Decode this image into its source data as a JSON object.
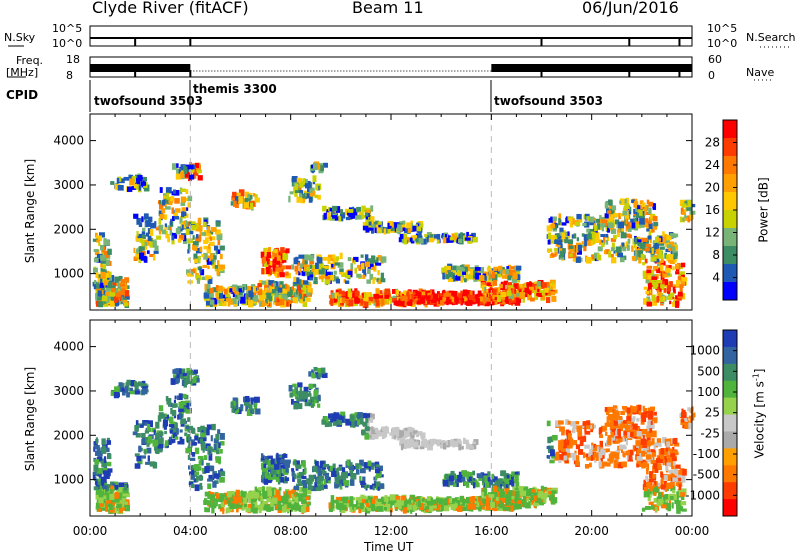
{
  "header": {
    "site": "Clyde River (fitACF)",
    "beam": "Beam 11",
    "date": "06/Jun/2016"
  },
  "status_panels": {
    "nsky_label": "N.Sky",
    "nsky_ticks": [
      "10^5",
      "10^0"
    ],
    "nsearch_ticks": [
      "10^5",
      "10^0"
    ],
    "nsearch_label": "N.Search",
    "freq_label": "Freq.",
    "freq_unit": "[MHz]",
    "freq_ticks": [
      "18",
      "8"
    ],
    "nave_ticks": [
      "60",
      "0"
    ],
    "nave_label": "Nave",
    "cpid_label": "CPID",
    "cpid_segments": [
      {
        "label": "twofsound 3503",
        "start_h": 0,
        "end_h": 4
      },
      {
        "label": "themis 3300",
        "start_h": 4,
        "end_h": 16
      },
      {
        "label": "twofsound 3503",
        "start_h": 16,
        "end_h": 24
      }
    ]
  },
  "colorbars": {
    "power": {
      "title": "Power [dB]",
      "ticks": [
        "28",
        "24",
        "20",
        "16",
        "12",
        "8",
        "4"
      ],
      "colors": [
        "#ff0000",
        "#ff3c00",
        "#ff7800",
        "#ffa000",
        "#ffc800",
        "#c8d200",
        "#78b478",
        "#3c8c64",
        "#1e5ab4",
        "#0000ff"
      ]
    },
    "velocity": {
      "title": "Velocity [m s",
      "title_sup": "-1",
      "title_end": "]",
      "ticks": [
        "1000",
        "500",
        "100",
        "25",
        "-25",
        "-100",
        "-500",
        "-1000"
      ],
      "colors": [
        "#1e3cb4",
        "#3264a0",
        "#3c8c64",
        "#50b43c",
        "#96d24b",
        "#c8c8c8",
        "#aaaaaa",
        "#ffa000",
        "#ff7800",
        "#ff3c00",
        "#ff0000"
      ]
    }
  },
  "chart_data": [
    {
      "type": "heatmap",
      "title": "",
      "ylabel": "Slant Range [km]",
      "xlim": [
        0,
        24
      ],
      "ylim": [
        180,
        4600
      ],
      "yticks": [
        1000,
        2000,
        3000,
        4000
      ],
      "colorbar": "Power [dB]",
      "grid": false
    },
    {
      "type": "heatmap",
      "title": "",
      "ylabel": "Slant Range [km]",
      "xlabel": "Time UT",
      "xlim": [
        0,
        24
      ],
      "ylim": [
        180,
        4600
      ],
      "yticks": [
        1000,
        2000,
        3000,
        4000
      ],
      "xticks": [
        "00:00",
        "04:00",
        "08:00",
        "12:00",
        "16:00",
        "20:00",
        "00:00"
      ],
      "colorbar": "Velocity [m s-1]",
      "grid": false
    }
  ]
}
